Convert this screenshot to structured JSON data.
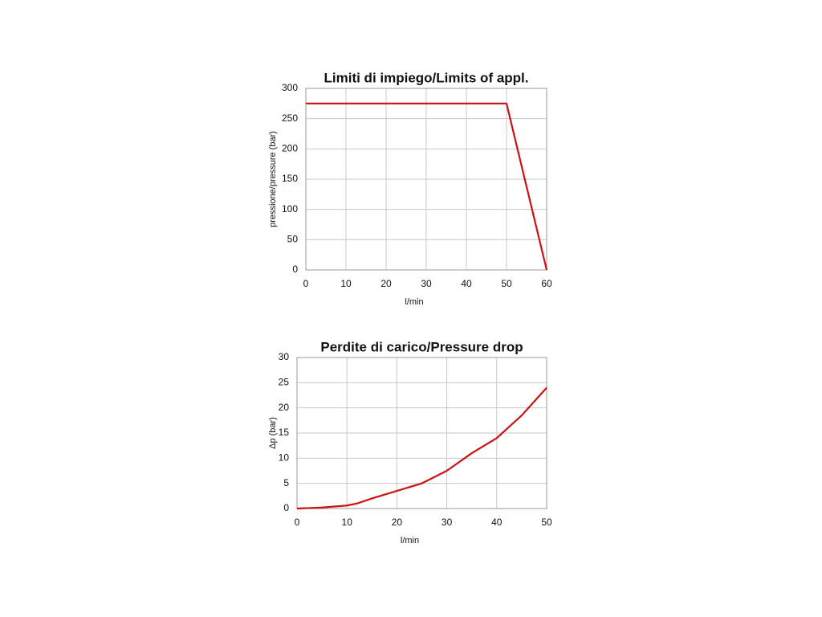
{
  "chart_data": [
    {
      "type": "line",
      "title": "Limiti di impiego/Limits of appl.",
      "x_label": "l/min",
      "y_label": "pressione/pressure (bar)",
      "x": [
        0,
        50,
        60
      ],
      "values": [
        275,
        275,
        0
      ],
      "color": "#cc1111",
      "xlim": [
        0,
        60
      ],
      "xticks": [
        0,
        10,
        20,
        30,
        40,
        50,
        60
      ],
      "ylim": [
        0,
        300
      ],
      "yticks": [
        0,
        50,
        100,
        150,
        200,
        250,
        300
      ],
      "grid": true
    },
    {
      "type": "line",
      "title": "Perdite di carico/Pressure drop",
      "x_label": "l/min",
      "y_label": "Δp (bar)",
      "x": [
        0,
        5,
        10,
        12,
        15,
        20,
        25,
        30,
        35,
        40,
        45,
        50
      ],
      "values": [
        0,
        0.2,
        0.6,
        1,
        2,
        3.5,
        5,
        7.5,
        11,
        14,
        18.5,
        24
      ],
      "color": "#cc1111",
      "xlim": [
        0,
        50
      ],
      "xticks": [
        0,
        10,
        20,
        30,
        40,
        50
      ],
      "ylim": [
        0,
        30
      ],
      "yticks": [
        0,
        5,
        10,
        15,
        20,
        25,
        30
      ],
      "grid": true
    }
  ]
}
